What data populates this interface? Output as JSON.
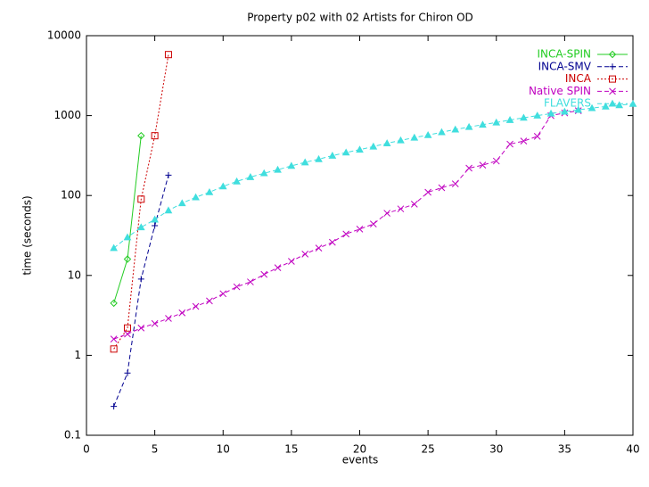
{
  "chart_data": {
    "type": "line",
    "title": "Property p02 with 02 Artists for Chiron OD",
    "xlabel": "events",
    "ylabel": "time (seconds)",
    "log_y": true,
    "xlim": [
      0,
      40
    ],
    "xticks": [
      0,
      5,
      10,
      15,
      20,
      25,
      30,
      35,
      40
    ],
    "ylim": [
      0.1,
      10000
    ],
    "yticks": [
      0.1,
      1,
      10,
      100,
      1000,
      10000
    ],
    "legend": "top-right",
    "series": [
      {
        "name": "INCA-SPIN",
        "color": "#22cc22",
        "dash": "solid",
        "marker": "diamond",
        "x": [
          2,
          3,
          4
        ],
        "values": [
          4.5,
          16,
          560
        ]
      },
      {
        "name": "INCA-SMV",
        "color": "#000090",
        "dash": "dashed",
        "marker": "plus",
        "x": [
          2,
          3,
          4,
          5,
          6
        ],
        "values": [
          0.23,
          0.6,
          9,
          42,
          180
        ]
      },
      {
        "name": "INCA",
        "color": "#cc0000",
        "dash": "dotted",
        "marker": "square",
        "x": [
          2,
          3,
          4,
          5,
          6
        ],
        "values": [
          1.2,
          2.2,
          90,
          560,
          5800
        ]
      },
      {
        "name": "Native SPIN",
        "color": "#c000c0",
        "dash": "dashed",
        "marker": "cross",
        "x": [
          2,
          3,
          4,
          5,
          6,
          7,
          8,
          9,
          10,
          11,
          12,
          13,
          14,
          15,
          16,
          17,
          18,
          19,
          20,
          21,
          22,
          23,
          24,
          25,
          26,
          27,
          28,
          29,
          30,
          31,
          32,
          33,
          34,
          35,
          36
        ],
        "values": [
          1.6,
          1.85,
          2.2,
          2.5,
          2.9,
          3.4,
          4.1,
          4.8,
          5.9,
          7.2,
          8.3,
          10.3,
          12.5,
          15,
          18.5,
          22,
          26,
          33,
          38,
          44,
          60,
          68,
          78,
          110,
          125,
          140,
          220,
          240,
          270,
          440,
          480,
          550,
          1000,
          1080,
          1150
        ]
      },
      {
        "name": "FLAVERS",
        "color": "#40dede",
        "dash": "dashed",
        "marker": "triangle",
        "x": [
          2,
          3,
          4,
          5,
          6,
          7,
          8,
          9,
          10,
          11,
          12,
          13,
          14,
          15,
          16,
          17,
          18,
          19,
          20,
          21,
          22,
          23,
          24,
          25,
          26,
          27,
          28,
          29,
          30,
          31,
          32,
          33,
          34,
          35,
          36,
          37,
          38,
          39,
          40
        ],
        "values": [
          22,
          30,
          40,
          50,
          65,
          80,
          95,
          110,
          130,
          150,
          170,
          190,
          210,
          235,
          260,
          285,
          315,
          345,
          375,
          410,
          450,
          490,
          530,
          570,
          620,
          670,
          720,
          770,
          820,
          880,
          940,
          1000,
          1060,
          1120,
          1180,
          1240,
          1300,
          1350,
          1400
        ]
      }
    ]
  }
}
